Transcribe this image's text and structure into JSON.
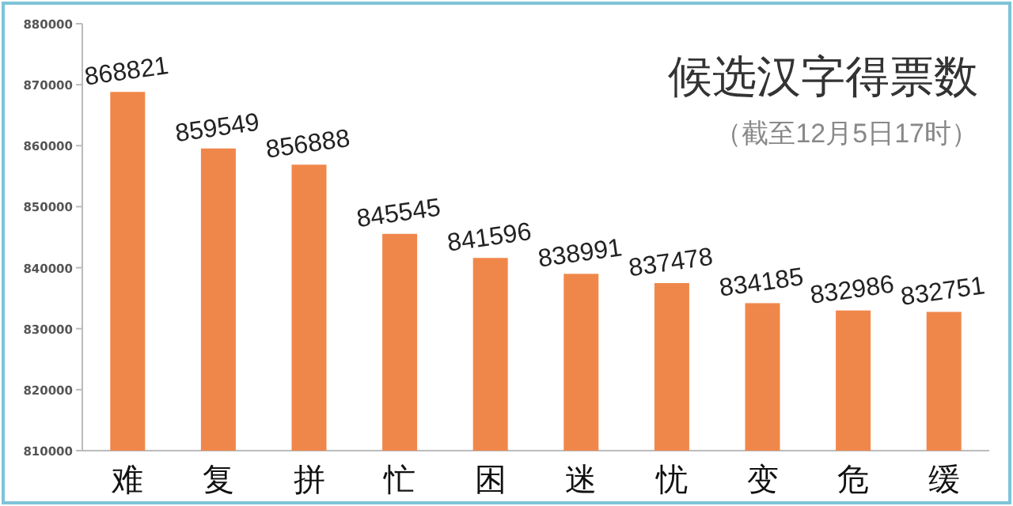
{
  "chart_data": {
    "type": "bar",
    "title": "候选汉字得票数",
    "subtitle": "（截至12月5日17时）",
    "categories": [
      "难",
      "复",
      "拼",
      "忙",
      "困",
      "迷",
      "忧",
      "变",
      "危",
      "缓"
    ],
    "values": [
      868821,
      859549,
      856888,
      845545,
      841596,
      838991,
      837478,
      834185,
      832986,
      832751
    ],
    "color": "#f0874a",
    "ylim": [
      810000,
      880000
    ],
    "yticks": [
      810000,
      820000,
      830000,
      840000,
      850000,
      860000,
      870000,
      880000
    ],
    "data_labels": true,
    "grid": false
  }
}
